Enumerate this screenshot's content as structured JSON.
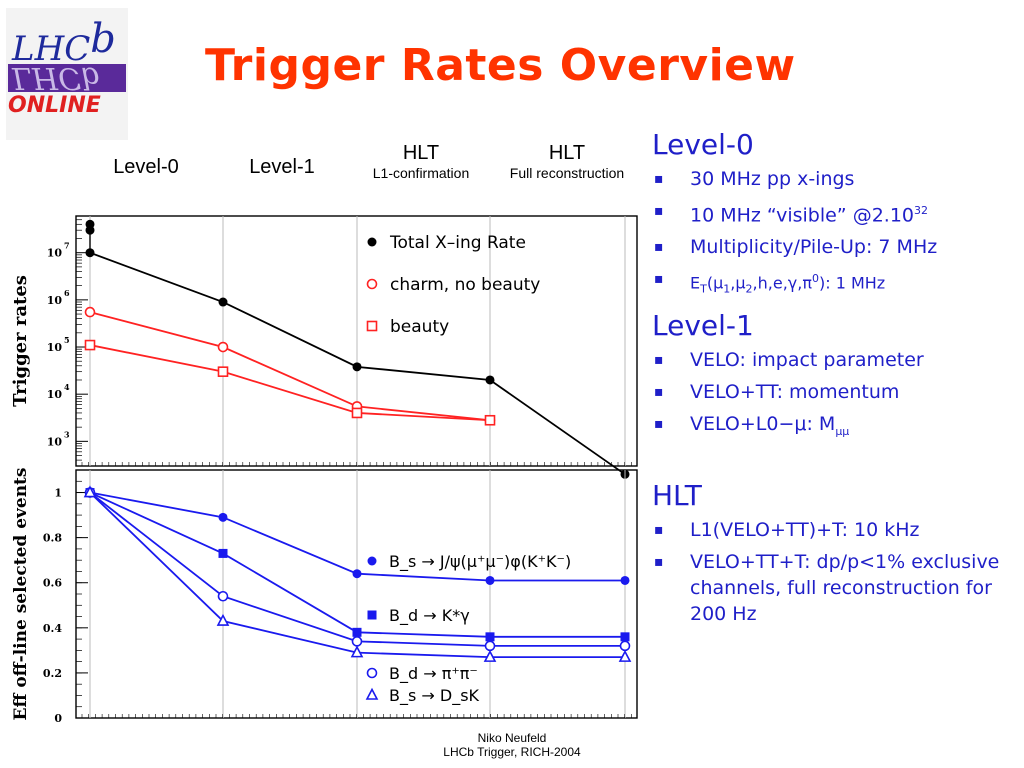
{
  "title": "Trigger Rates Overview",
  "logo": {
    "top_text": "LHCb",
    "bottom_text": "ONLINE",
    "colors": {
      "blue": "#1e2a9c",
      "red": "#e02020",
      "purple": "#5a2a9a"
    }
  },
  "stages": [
    {
      "label": "Level-0",
      "sub": ""
    },
    {
      "label": "Level-1",
      "sub": ""
    },
    {
      "label": "HLT",
      "sub": "L1-confirmation"
    },
    {
      "label": "HLT",
      "sub": "Full reconstruction"
    }
  ],
  "bullets": {
    "level0": {
      "heading": "Level-0",
      "items": [
        "30 MHz pp x-ings",
        "10 MHz “visible” @2.10",
        "Multiplicity/Pile-Up: 7 MHz",
        "E"
      ],
      "sup_32": "32",
      "et_suffix": "(μ",
      "et_sub_t": "T",
      "et_mu1": "1",
      "et_comma": ",μ",
      "et_mu2": "2",
      "et_rest": ",h,e,γ,π",
      "et_zero": "0",
      "et_end": "): 1 MHz"
    },
    "level1": {
      "heading": "Level-1",
      "items": [
        "VELO: impact parameter",
        "VELO+TT: momentum",
        "VELO+L0−μ: M"
      ],
      "sub_mumu": "μμ"
    },
    "hlt": {
      "heading": "HLT",
      "items": [
        "L1(VELO+TT)+T: 10 kHz",
        "VELO+TT+T: dp/p<1% exclusive channels, full reconstruction for 200 Hz"
      ]
    }
  },
  "footer": {
    "line1": "Niko Neufeld",
    "line2": "LHCb Trigger, RICH-2004"
  },
  "colors": {
    "accent_title": "#ff3300",
    "bullet_text": "#1f1fc8",
    "black_series": "#000000",
    "red_series": "#ff2222",
    "blue_series": "#1a1aee"
  },
  "chart_data": [
    {
      "type": "line",
      "ylabel": "Trigger rates",
      "yscale": "log",
      "ylim": [
        300,
        60000000
      ],
      "yticks": [
        1000,
        10000,
        100000,
        1000000,
        10000000
      ],
      "ytick_labels": [
        "10",
        "10",
        "10",
        "10",
        "10"
      ],
      "ytick_exponents": [
        "3",
        "4",
        "5",
        "6",
        "7"
      ],
      "x": [
        0,
        1,
        2,
        3,
        4
      ],
      "series": [
        {
          "name": "Total X–ing Rate",
          "marker": "filled-circle",
          "color": "#000000",
          "x": [
            0,
            1,
            2,
            3,
            4
          ],
          "values": [
            10000000,
            900000,
            38000,
            20000,
            200
          ]
        },
        {
          "name": "charm, no beauty",
          "marker": "open-circle",
          "color": "#ff2222",
          "x": [
            0,
            1,
            2,
            3
          ],
          "values": [
            550000,
            100000,
            5500,
            2800
          ]
        },
        {
          "name": "beauty",
          "marker": "open-square",
          "color": "#ff2222",
          "x": [
            0,
            1,
            2,
            3
          ],
          "values": [
            110000,
            30000,
            4000,
            2800
          ]
        }
      ],
      "extra_points": [
        {
          "x": 0,
          "values": [
            40000000,
            30000000
          ]
        }
      ],
      "legend": "top-right"
    },
    {
      "type": "line",
      "ylabel": "Eff off-line selected events",
      "ylim": [
        0,
        1.1
      ],
      "yticks": [
        0,
        0.2,
        0.4,
        0.6,
        0.8,
        1
      ],
      "ytick_labels": [
        "0",
        "0.2",
        "0.4",
        "0.6",
        "0.8",
        "1"
      ],
      "x": [
        0,
        1,
        2,
        3,
        4
      ],
      "series": [
        {
          "name": "B_s → J/ψ(μ⁺μ⁻)φ(K⁺K⁻)",
          "marker": "filled-circle",
          "color": "#1a1aee",
          "values": [
            1,
            0.89,
            0.64,
            0.61,
            0.61
          ]
        },
        {
          "name": "B_d → K*γ",
          "marker": "filled-square",
          "color": "#1a1aee",
          "values": [
            1,
            0.73,
            0.38,
            0.36,
            0.36
          ]
        },
        {
          "name": "B_d → π⁺π⁻",
          "marker": "open-circle",
          "color": "#1a1aee",
          "values": [
            1,
            0.54,
            0.34,
            0.32,
            0.32
          ]
        },
        {
          "name": "B_s → D_sK",
          "marker": "open-triangle",
          "color": "#1a1aee",
          "values": [
            1,
            0.43,
            0.29,
            0.27,
            0.27
          ]
        }
      ],
      "legend": "right"
    }
  ]
}
